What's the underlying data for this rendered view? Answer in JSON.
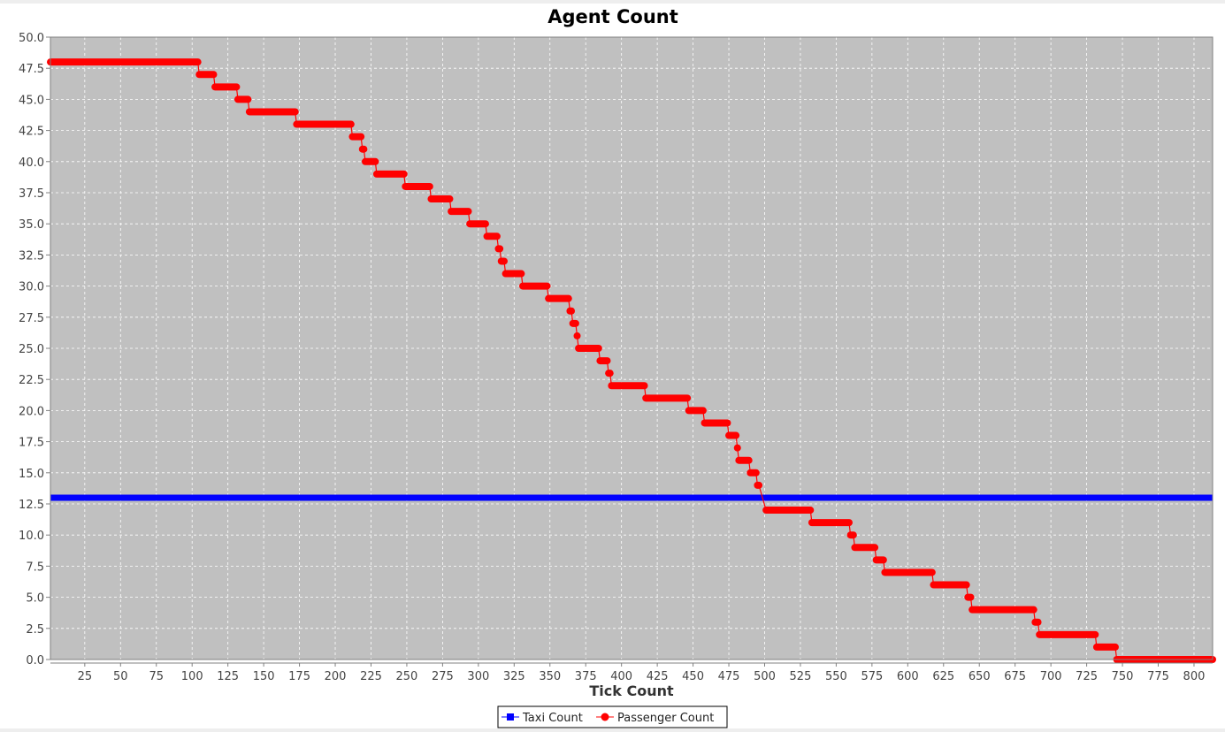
{
  "chart_data": {
    "type": "line",
    "title": "Agent Count",
    "xlabel": "Tick Count",
    "ylabel": "",
    "xlim": [
      1,
      813
    ],
    "ylim": [
      0,
      50
    ],
    "xticks": [
      25,
      50,
      75,
      100,
      125,
      150,
      175,
      200,
      225,
      250,
      275,
      300,
      325,
      350,
      375,
      400,
      425,
      450,
      475,
      500,
      525,
      550,
      575,
      600,
      625,
      650,
      675,
      700,
      725,
      750,
      775,
      800
    ],
    "yticks": [
      0,
      2.5,
      5,
      7.5,
      10,
      12.5,
      15,
      17.5,
      20,
      22.5,
      25,
      27.5,
      30,
      32.5,
      35,
      37.5,
      40,
      42.5,
      45,
      47.5,
      50
    ],
    "ytick_labels": [
      "0.0",
      "2.5",
      "5.0",
      "7.5",
      "10.0",
      "12.5",
      "15.0",
      "17.5",
      "20.0",
      "22.5",
      "25.0",
      "27.5",
      "30.0",
      "32.5",
      "35.0",
      "37.5",
      "40.0",
      "42.5",
      "45.0",
      "47.5",
      "50.0"
    ],
    "grid": true,
    "legend_position": "bottom",
    "plot_background": "#c0c0c0",
    "series": [
      {
        "name": "Taxi Count",
        "color": "#0000ff",
        "marker": "square",
        "steps": [
          [
            1,
            813,
            13
          ]
        ]
      },
      {
        "name": "Passenger Count",
        "color": "#ff0000",
        "marker": "circle",
        "steps": [
          [
            1,
            104,
            48
          ],
          [
            105,
            115,
            47
          ],
          [
            116,
            131,
            46
          ],
          [
            132,
            139,
            45
          ],
          [
            140,
            172,
            44
          ],
          [
            173,
            211,
            43
          ],
          [
            212,
            218,
            42
          ],
          [
            219,
            220,
            41
          ],
          [
            221,
            228,
            40
          ],
          [
            229,
            248,
            39
          ],
          [
            249,
            266,
            38
          ],
          [
            267,
            280,
            37
          ],
          [
            281,
            293,
            36
          ],
          [
            294,
            305,
            35
          ],
          [
            306,
            313,
            34
          ],
          [
            314,
            315,
            33
          ],
          [
            316,
            318,
            32
          ],
          [
            319,
            330,
            31
          ],
          [
            331,
            348,
            30
          ],
          [
            349,
            363,
            29
          ],
          [
            364,
            365,
            28
          ],
          [
            366,
            368,
            27
          ],
          [
            369,
            369,
            26
          ],
          [
            370,
            384,
            25
          ],
          [
            385,
            390,
            24
          ],
          [
            391,
            392,
            23
          ],
          [
            393,
            416,
            22
          ],
          [
            417,
            446,
            21
          ],
          [
            447,
            457,
            20
          ],
          [
            458,
            474,
            19
          ],
          [
            475,
            480,
            18
          ],
          [
            481,
            481,
            17
          ],
          [
            482,
            489,
            16
          ],
          [
            490,
            494,
            15
          ],
          [
            495,
            496,
            14
          ],
          [
            501,
            532,
            12
          ],
          [
            533,
            559,
            11
          ],
          [
            560,
            562,
            10
          ],
          [
            563,
            577,
            9
          ],
          [
            578,
            583,
            8
          ],
          [
            584,
            617,
            7
          ],
          [
            618,
            641,
            6
          ],
          [
            642,
            644,
            5
          ],
          [
            645,
            688,
            4
          ],
          [
            689,
            691,
            3
          ],
          [
            692,
            731,
            2
          ],
          [
            732,
            745,
            1
          ],
          [
            746,
            813,
            0
          ]
        ]
      }
    ]
  }
}
